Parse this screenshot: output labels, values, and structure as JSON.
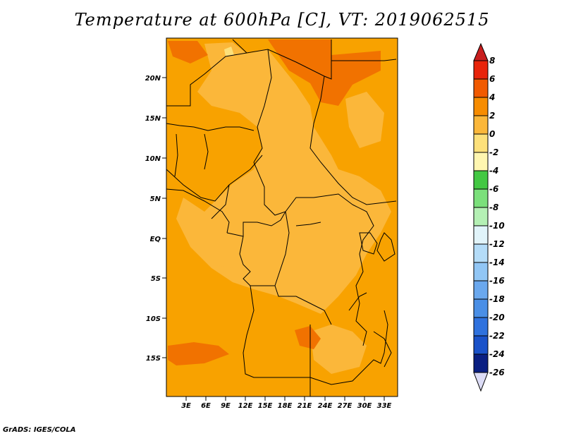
{
  "title": "Temperature at 600hPa [C], VT: 2019062515",
  "credit": "GrADS: IGES/COLA",
  "map": {
    "lat_labels": [
      "20N",
      "15N",
      "10N",
      "5N",
      "EQ",
      "5S",
      "10S",
      "15S"
    ],
    "lon_labels": [
      "3E",
      "6E",
      "9E",
      "12E",
      "15E",
      "18E",
      "21E",
      "24E",
      "27E",
      "30E",
      "33E"
    ],
    "colors": {
      "warm_2_4": "#f8a200",
      "warm_0_2": "#fbb73a",
      "warm_4_6": "#f17200",
      "warm_6_8": "#e84a0a",
      "pale_neg2_0": "#fde07a",
      "border": "#000000"
    }
  },
  "colorbar": {
    "labels": [
      "8",
      "6",
      "4",
      "2",
      "0",
      "-2",
      "-4",
      "-6",
      "-8",
      "-10",
      "-12",
      "-14",
      "-16",
      "-18",
      "-20",
      "-22",
      "-24",
      "-26"
    ],
    "colors": [
      "#e8240a",
      "#f15a00",
      "#f78c00",
      "#fbb73a",
      "#fde07a",
      "#fff6b0",
      "#d6f5b8",
      "#43c843",
      "#7be07b",
      "#b4f0b4",
      "#e1f4fa",
      "#b4dcf8",
      "#91c6f5",
      "#6aa8ee",
      "#4a8fe6",
      "#2f72de",
      "#1a52c9",
      "#0f3aaa",
      "#0a1f82"
    ],
    "top_triangle_color": "#c81e1e",
    "bottom_triangle_color": "#dcdcf6"
  }
}
